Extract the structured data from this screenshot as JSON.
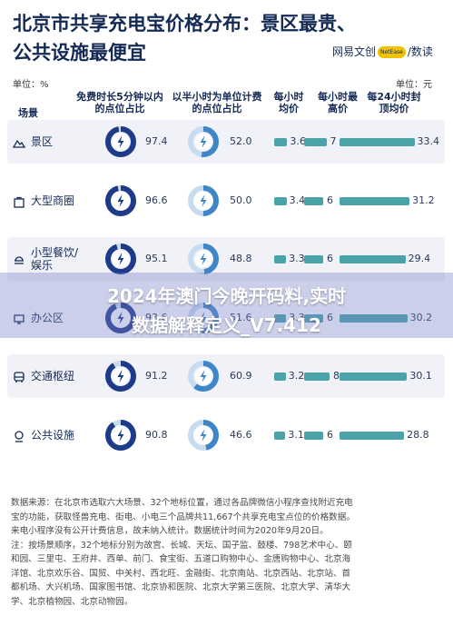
{
  "header": {
    "title_line1": "北京市共享充电宝价格分布：景区最贵、",
    "title_line2": "公共设施最便宜",
    "logo_text_left": "网易文创",
    "logo_badge": "NetEase",
    "logo_text_right": "/数读"
  },
  "units": {
    "left": "单位：%",
    "right": "单位：元"
  },
  "colors": {
    "navy": "#1e3b8a",
    "blue": "#3f86c9",
    "light_blue": "#c8dcef",
    "teal": "#4aa3a8",
    "teal_light": "#d7ebec",
    "title": "#142a55"
  },
  "chart_data": {
    "type": "table",
    "title": "北京市共享充电宝价格分布：景区最贵、公共设施最便宜",
    "columns": [
      "场景",
      "免费时长5分钟以内的点位占比",
      "以半小时为单位计费的点位占比",
      "每小时均价",
      "每小时最高价",
      "每24小时封顶均价"
    ],
    "column_units": [
      "",
      "%",
      "%",
      "元",
      "元",
      "元"
    ],
    "rows": [
      {
        "scene": "景区",
        "icon": "mountain-icon",
        "free5": 97.4,
        "half_hour": 52.0,
        "hour_avg": 3.6,
        "hour_max": 7,
        "cap24": 33.4
      },
      {
        "scene": "大型商圈",
        "icon": "shopping-bag-icon",
        "free5": 96.6,
        "half_hour": 50.0,
        "hour_avg": 3.4,
        "hour_max": 6,
        "cap24": 31.2
      },
      {
        "scene": "小型餐饮/娱乐",
        "icon": "dining-icon",
        "free5": 95.1,
        "half_hour": 48.8,
        "hour_avg": 3.3,
        "hour_max": 6,
        "cap24": 29.4
      },
      {
        "scene": "办公区",
        "icon": "office-icon",
        "free5": 93.6,
        "half_hour": 51.6,
        "hour_avg": 3.3,
        "hour_max": 6,
        "cap24": 30.2
      },
      {
        "scene": "交通枢纽",
        "icon": "bus-icon",
        "free5": 91.2,
        "half_hour": 60.9,
        "hour_avg": 3.2,
        "hour_max": 8,
        "cap24": 30.1
      },
      {
        "scene": "公共设施",
        "icon": "public-facility-icon",
        "free5": 90.8,
        "half_hour": 46.6,
        "hour_avg": 3.1,
        "hour_max": 6,
        "cap24": 28.8
      }
    ],
    "bar_max": {
      "hour_avg": 4,
      "hour_max": 8,
      "cap24": 34
    }
  },
  "footer": {
    "lines": [
      "数据来源：在北京市选取六大场景、32个地标位置，通过各品牌微信小程序查找附近充电",
      "宝的功能，获取怪兽充电、街电、小电三个品牌共11,667个共享充电宝点位的价格数据。",
      "来电小程序没有公开计费信息，故未纳入统计。数据统计时间为2020年9月20日。",
      "注：按场景顺序，32个地标分别为故宫、长城、天坛、国子监、鼓楼、798艺术中心、颐",
      "和园、三里屯、王府井、西单、前门、食宝街、五道口购物中心、金唐购物中心、北京海",
      "洋馆、北京欢乐谷、国贸、中关村、西北旺、金融街、北京南站、北京西站、北京站、首",
      "都机场、大兴机场、国家图书馆、北京协和医院、北京大学第三医院、北京大学、清华大",
      "学、北京植物园、北京动物园。"
    ]
  },
  "overlay": {
    "line1": "2024年澳门今晚开码料,实时",
    "line2": "数据解释定义_V7.412"
  }
}
